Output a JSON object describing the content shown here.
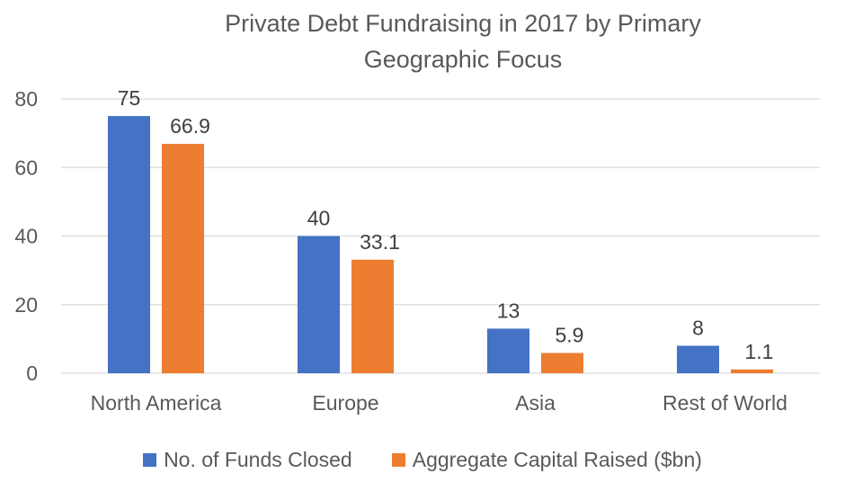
{
  "chart_data": {
    "type": "bar",
    "title_lines": [
      "Private Debt Fundraising in 2017 by Primary",
      "Geographic Focus"
    ],
    "categories": [
      "North America",
      "Europe",
      "Asia",
      "Rest of World"
    ],
    "series": [
      {
        "name": "No. of Funds Closed",
        "values": [
          75,
          40,
          13,
          8
        ],
        "value_labels": [
          "75",
          "40",
          "13",
          "8"
        ],
        "color": "#4472C4"
      },
      {
        "name": "Aggregate Capital Raised ($bn)",
        "values": [
          66.9,
          33.1,
          5.9,
          1.1
        ],
        "value_labels": [
          "66.9",
          "33.1",
          "5.9",
          "1.1"
        ],
        "color": "#ED7D31"
      }
    ],
    "ylim": [
      0,
      80
    ],
    "yticks": [
      0,
      20,
      40,
      60,
      80
    ],
    "ytick_labels": [
      "0",
      "20",
      "40",
      "60",
      "80"
    ],
    "grid": true,
    "legend_position": "bottom",
    "gridline_color": "#D9D9D9"
  }
}
